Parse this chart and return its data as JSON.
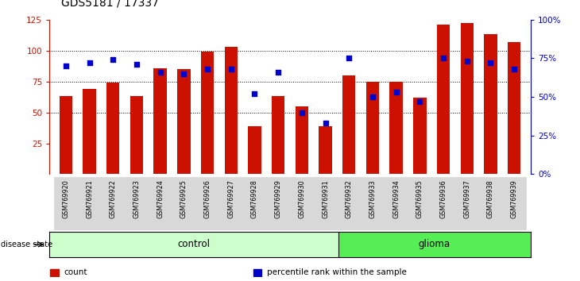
{
  "title": "GDS5181 / 17337",
  "samples": [
    "GSM769920",
    "GSM769921",
    "GSM769922",
    "GSM769923",
    "GSM769924",
    "GSM769925",
    "GSM769926",
    "GSM769927",
    "GSM769928",
    "GSM769929",
    "GSM769930",
    "GSM769931",
    "GSM769932",
    "GSM769933",
    "GSM769934",
    "GSM769935",
    "GSM769936",
    "GSM769937",
    "GSM769938",
    "GSM769939"
  ],
  "counts": [
    63,
    69,
    74,
    63,
    86,
    85,
    99,
    103,
    39,
    63,
    55,
    39,
    80,
    75,
    75,
    62,
    121,
    122,
    113,
    107
  ],
  "percentiles": [
    70,
    72,
    74,
    71,
    66,
    65,
    68,
    68,
    52,
    66,
    40,
    33,
    75,
    50,
    53,
    47,
    75,
    73,
    72,
    68
  ],
  "n_control": 12,
  "n_glioma": 8,
  "group_colors": [
    "#ccffcc",
    "#55ee55"
  ],
  "bar_color": "#cc1100",
  "dot_color": "#0000cc",
  "ylim_left": [
    0,
    125
  ],
  "ylim_right": [
    0,
    100
  ],
  "yticks_left": [
    25,
    50,
    75,
    100,
    125
  ],
  "yticks_right": [
    0,
    25,
    50,
    75,
    100
  ],
  "ytick_labels_right": [
    "0%",
    "25%",
    "50%",
    "75%",
    "100%"
  ],
  "grid_values": [
    50,
    75,
    100
  ],
  "title_fontsize": 10
}
